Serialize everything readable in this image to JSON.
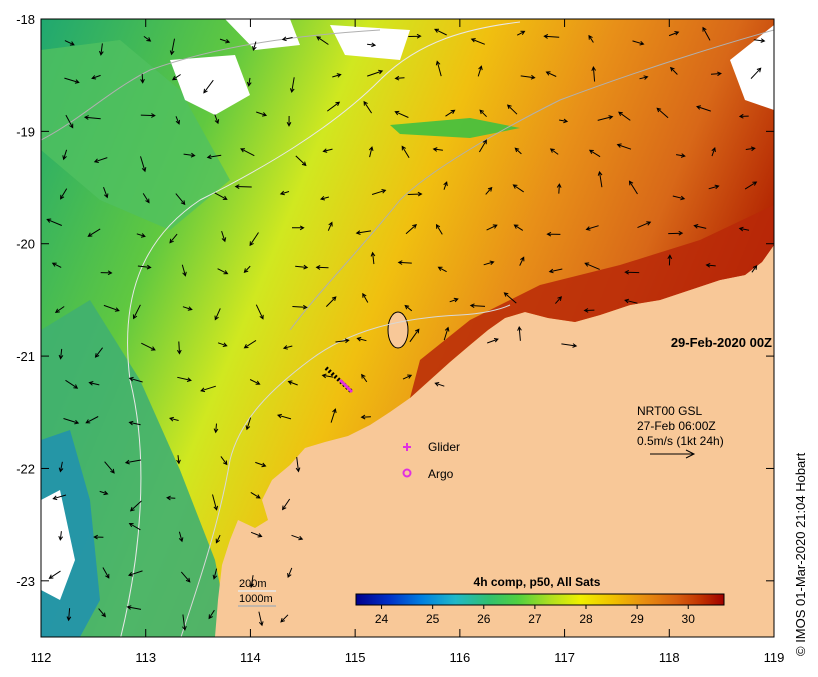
{
  "map": {
    "date_label": "29-Feb-2020 00Z",
    "x_axis": {
      "ticks": [
        "112",
        "113",
        "114",
        "115",
        "116",
        "117",
        "118",
        "119"
      ]
    },
    "y_axis": {
      "ticks": [
        "-18",
        "-19",
        "-20",
        "-21",
        "-22",
        "-23"
      ]
    },
    "lon_range": [
      112,
      119
    ],
    "lat_range": [
      -23.5,
      -18
    ],
    "currents_note": [
      "NRT00 GSL",
      "27-Feb 06:00Z",
      "0.5m/s (1kt 24h)"
    ],
    "legend_items": [
      {
        "label": "Glider",
        "color": "#e030e0",
        "symbol": "plus"
      },
      {
        "label": "Argo",
        "color": "#e030e0",
        "symbol": "ring"
      }
    ],
    "depth_contours": [
      "200m",
      "1000m"
    ],
    "colorbar": {
      "title": "4h comp, p50, All Sats",
      "ticks": [
        "24",
        "25",
        "26",
        "27",
        "28",
        "29",
        "30"
      ],
      "range": [
        23.5,
        30.7
      ],
      "colors": [
        "#00008c",
        "#0030c8",
        "#0080e0",
        "#20b8c8",
        "#30c070",
        "#50d040",
        "#b0e020",
        "#f0f000",
        "#f0c000",
        "#e89010",
        "#d86010",
        "#c03000",
        "#a00000"
      ]
    },
    "credit": "© IMOS 01-Mar-2020 21:04 Hobart",
    "colors": {
      "land": "#f8c898",
      "frame": "#000000",
      "annotation": "#e030e0"
    }
  }
}
